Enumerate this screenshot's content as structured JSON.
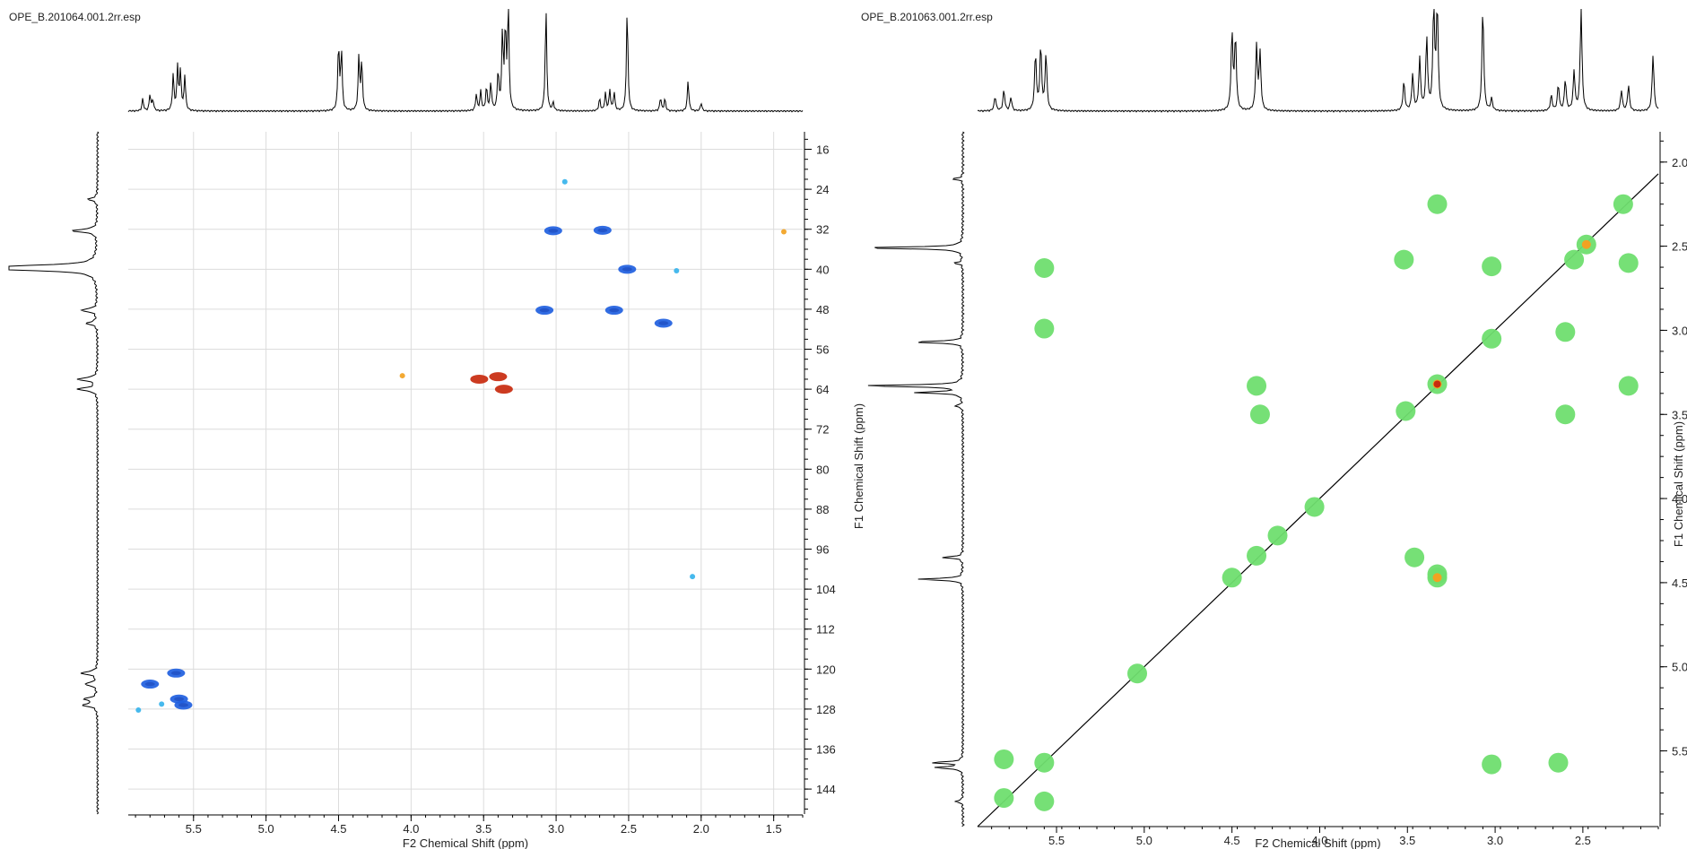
{
  "left_panel": {
    "file_title": "OPE_B.201064.001.2rr.esp"
  },
  "right_panel": {
    "file_title": "OPE_B.201063.001.2rr.esp"
  },
  "chart_data": [
    {
      "type": "heatmap",
      "subtype": "2D NMR HSQC contour plot",
      "xlabel": "F2 Chemical Shift (ppm)",
      "ylabel": "F1 Chemical Shift (ppm)",
      "xlim": [
        5.95,
        1.3
      ],
      "ylim": [
        12.5,
        149
      ],
      "x_reversed": true,
      "y_reversed": true,
      "xticks": [
        5.5,
        5.0,
        4.5,
        4.0,
        3.5,
        3.0,
        2.5,
        2.0,
        1.5
      ],
      "xtick_labels": [
        "5.5",
        "5.0",
        "4.5",
        "4.0",
        "3.5",
        "3.0",
        "2.5",
        "2.0",
        "1.5"
      ],
      "yticks": [
        16,
        24,
        32,
        40,
        48,
        56,
        64,
        72,
        80,
        88,
        96,
        104,
        112,
        120,
        128,
        136,
        144
      ],
      "ytick_labels": [
        "16",
        "24",
        "32",
        "40",
        "48",
        "56",
        "64",
        "72",
        "80",
        "88",
        "96",
        "104",
        "112",
        "120",
        "128",
        "136",
        "144"
      ],
      "grid": true,
      "colors": {
        "positive": "#1f5fe0",
        "positive_weak": "#36b3ec",
        "negative": "#c82a0e",
        "negative_weak": "#f2a221",
        "grid": "#dcdcdc"
      },
      "peaks": [
        {
          "x": 3.02,
          "y": 32.3,
          "phase": "positive"
        },
        {
          "x": 2.68,
          "y": 32.2,
          "phase": "positive"
        },
        {
          "x": 2.51,
          "y": 40.0,
          "phase": "positive"
        },
        {
          "x": 3.08,
          "y": 48.2,
          "phase": "positive"
        },
        {
          "x": 2.6,
          "y": 48.2,
          "phase": "positive"
        },
        {
          "x": 2.26,
          "y": 50.8,
          "phase": "positive"
        },
        {
          "x": 3.53,
          "y": 62.0,
          "phase": "negative"
        },
        {
          "x": 3.4,
          "y": 61.5,
          "phase": "negative"
        },
        {
          "x": 3.36,
          "y": 64.0,
          "phase": "negative"
        },
        {
          "x": 4.06,
          "y": 61.3,
          "phase": "negative_weak"
        },
        {
          "x": 1.43,
          "y": 32.5,
          "phase": "negative_weak"
        },
        {
          "x": 5.62,
          "y": 120.8,
          "phase": "positive"
        },
        {
          "x": 5.8,
          "y": 123.0,
          "phase": "positive"
        },
        {
          "x": 5.6,
          "y": 126.0,
          "phase": "positive"
        },
        {
          "x": 5.57,
          "y": 127.2,
          "phase": "positive"
        },
        {
          "x": 5.72,
          "y": 127.0,
          "phase": "positive_weak"
        },
        {
          "x": 5.88,
          "y": 128.2,
          "phase": "positive_weak"
        },
        {
          "x": 2.94,
          "y": 22.5,
          "phase": "positive_weak"
        },
        {
          "x": 2.17,
          "y": 40.3,
          "phase": "positive_weak"
        },
        {
          "x": 2.06,
          "y": 101.5,
          "phase": "positive_weak"
        }
      ],
      "projections": {
        "f2_peaks": [
          {
            "x": 5.85,
            "h": 0.12
          },
          {
            "x": 5.8,
            "h": 0.16
          },
          {
            "x": 5.78,
            "h": 0.11
          },
          {
            "x": 5.64,
            "h": 0.35
          },
          {
            "x": 5.61,
            "h": 0.42
          },
          {
            "x": 5.59,
            "h": 0.38
          },
          {
            "x": 5.56,
            "h": 0.34
          },
          {
            "x": 4.5,
            "h": 0.65
          },
          {
            "x": 4.48,
            "h": 0.58
          },
          {
            "x": 4.36,
            "h": 0.52
          },
          {
            "x": 4.34,
            "h": 0.48
          },
          {
            "x": 3.55,
            "h": 0.16
          },
          {
            "x": 3.52,
            "h": 0.19
          },
          {
            "x": 3.48,
            "h": 0.23
          },
          {
            "x": 3.45,
            "h": 0.27
          },
          {
            "x": 3.4,
            "h": 0.38
          },
          {
            "x": 3.37,
            "h": 0.74
          },
          {
            "x": 3.35,
            "h": 0.78
          },
          {
            "x": 3.33,
            "h": 1.0
          },
          {
            "x": 3.07,
            "h": 1.0
          },
          {
            "x": 3.02,
            "h": 0.08
          },
          {
            "x": 2.7,
            "h": 0.12
          },
          {
            "x": 2.66,
            "h": 0.17
          },
          {
            "x": 2.63,
            "h": 0.2
          },
          {
            "x": 2.6,
            "h": 0.18
          },
          {
            "x": 2.51,
            "h": 1.0
          },
          {
            "x": 2.28,
            "h": 0.13
          },
          {
            "x": 2.25,
            "h": 0.12
          },
          {
            "x": 2.09,
            "h": 0.3
          },
          {
            "x": 2.0,
            "h": 0.08
          }
        ],
        "f1_peaks": [
          {
            "y": 26.0,
            "h": 0.1
          },
          {
            "y": 32.3,
            "h": 0.28
          },
          {
            "y": 39.5,
            "h": 1.0
          },
          {
            "y": 40.0,
            "h": 0.9
          },
          {
            "y": 48.2,
            "h": 0.18
          },
          {
            "y": 50.8,
            "h": 0.12
          },
          {
            "y": 62.0,
            "h": 0.22
          },
          {
            "y": 64.0,
            "h": 0.22
          },
          {
            "y": 120.8,
            "h": 0.18
          },
          {
            "y": 123.0,
            "h": 0.14
          },
          {
            "y": 126.0,
            "h": 0.14
          },
          {
            "y": 127.2,
            "h": 0.16
          }
        ]
      }
    },
    {
      "type": "heatmap",
      "subtype": "2D NMR COSY contour plot",
      "xlabel": "F2 Chemical Shift (ppm)",
      "ylabel": "F1 Chemical Shift (ppm)",
      "xlim": [
        5.95,
        2.07
      ],
      "ylim": [
        1.82,
        5.95
      ],
      "x_reversed": true,
      "y_reversed": true,
      "xticks": [
        5.5,
        5.0,
        4.5,
        4.0,
        3.5,
        3.0,
        2.5
      ],
      "xtick_labels": [
        "5.5",
        "5.0",
        "4.5",
        "4.0",
        "3.5",
        "3.0",
        "2.5"
      ],
      "yticks": [
        2.0,
        2.5,
        3.0,
        3.5,
        4.0,
        4.5,
        5.0,
        5.5
      ],
      "ytick_labels": [
        "2.0",
        "2.5",
        "3.0",
        "3.5",
        "4.0",
        "4.5",
        "5.0",
        "5.5"
      ],
      "grid": false,
      "diagonal_line": true,
      "colors": {
        "contour": "#6fde6f",
        "contour_high": "#f2a221",
        "contour_peak": "#c82a0e",
        "diagonal": "#000000"
      },
      "peaks": [
        {
          "x": 5.57,
          "y": 2.63,
          "level": 1
        },
        {
          "x": 5.57,
          "y": 2.99,
          "level": 1
        },
        {
          "x": 5.8,
          "y": 5.55,
          "level": 1
        },
        {
          "x": 5.57,
          "y": 5.57,
          "level": 1
        },
        {
          "x": 5.8,
          "y": 5.78,
          "level": 1
        },
        {
          "x": 5.57,
          "y": 5.8,
          "level": 1
        },
        {
          "x": 5.04,
          "y": 5.04,
          "level": 1
        },
        {
          "x": 4.36,
          "y": 3.33,
          "level": 1
        },
        {
          "x": 4.34,
          "y": 3.5,
          "level": 1
        },
        {
          "x": 4.5,
          "y": 4.47,
          "level": 1
        },
        {
          "x": 4.36,
          "y": 4.34,
          "level": 1
        },
        {
          "x": 4.24,
          "y": 4.22,
          "level": 1
        },
        {
          "x": 4.03,
          "y": 4.05,
          "level": 1
        },
        {
          "x": 3.52,
          "y": 2.58,
          "level": 1
        },
        {
          "x": 3.51,
          "y": 3.48,
          "level": 1
        },
        {
          "x": 3.46,
          "y": 4.35,
          "level": 1
        },
        {
          "x": 3.33,
          "y": 4.45,
          "level": 1
        },
        {
          "x": 3.33,
          "y": 4.47,
          "level": 2
        },
        {
          "x": 3.33,
          "y": 2.25,
          "level": 1
        },
        {
          "x": 3.33,
          "y": 3.32,
          "level": 3
        },
        {
          "x": 3.02,
          "y": 2.62,
          "level": 1
        },
        {
          "x": 3.02,
          "y": 3.05,
          "level": 1
        },
        {
          "x": 3.02,
          "y": 5.58,
          "level": 1
        },
        {
          "x": 2.6,
          "y": 3.01,
          "level": 1
        },
        {
          "x": 2.6,
          "y": 3.5,
          "level": 1
        },
        {
          "x": 2.64,
          "y": 5.57,
          "level": 1
        },
        {
          "x": 2.55,
          "y": 2.58,
          "level": 1
        },
        {
          "x": 2.48,
          "y": 2.49,
          "level": 2
        },
        {
          "x": 2.27,
          "y": 2.25,
          "level": 1
        },
        {
          "x": 2.24,
          "y": 3.33,
          "level": 1
        },
        {
          "x": 2.24,
          "y": 2.6,
          "level": 1
        }
      ],
      "projections": {
        "f2_peaks": [
          {
            "x": 5.85,
            "h": 0.14
          },
          {
            "x": 5.8,
            "h": 0.2
          },
          {
            "x": 5.76,
            "h": 0.13
          },
          {
            "x": 5.62,
            "h": 0.55
          },
          {
            "x": 5.59,
            "h": 0.62
          },
          {
            "x": 5.56,
            "h": 0.55
          },
          {
            "x": 4.5,
            "h": 0.75
          },
          {
            "x": 4.48,
            "h": 0.7
          },
          {
            "x": 4.36,
            "h": 0.62
          },
          {
            "x": 4.34,
            "h": 0.55
          },
          {
            "x": 3.52,
            "h": 0.28
          },
          {
            "x": 3.47,
            "h": 0.35
          },
          {
            "x": 3.43,
            "h": 0.5
          },
          {
            "x": 3.39,
            "h": 0.7
          },
          {
            "x": 3.35,
            "h": 1.0
          },
          {
            "x": 3.33,
            "h": 1.0
          },
          {
            "x": 3.07,
            "h": 1.0
          },
          {
            "x": 3.02,
            "h": 0.12
          },
          {
            "x": 2.68,
            "h": 0.15
          },
          {
            "x": 2.64,
            "h": 0.25
          },
          {
            "x": 2.6,
            "h": 0.3
          },
          {
            "x": 2.55,
            "h": 0.38
          },
          {
            "x": 2.51,
            "h": 1.0
          },
          {
            "x": 2.28,
            "h": 0.2
          },
          {
            "x": 2.24,
            "h": 0.25
          },
          {
            "x": 2.1,
            "h": 0.55
          }
        ],
        "f1_peaks": [
          {
            "y": 2.1,
            "h": 0.1
          },
          {
            "y": 2.51,
            "h": 1.0
          },
          {
            "y": 2.6,
            "h": 0.08
          },
          {
            "y": 3.07,
            "h": 0.5
          },
          {
            "y": 3.33,
            "h": 1.0
          },
          {
            "y": 3.37,
            "h": 0.45
          },
          {
            "y": 3.45,
            "h": 0.08
          },
          {
            "y": 4.35,
            "h": 0.2
          },
          {
            "y": 4.48,
            "h": 0.45
          },
          {
            "y": 5.57,
            "h": 0.3
          },
          {
            "y": 5.6,
            "h": 0.28
          },
          {
            "y": 5.8,
            "h": 0.08
          }
        ]
      }
    }
  ]
}
